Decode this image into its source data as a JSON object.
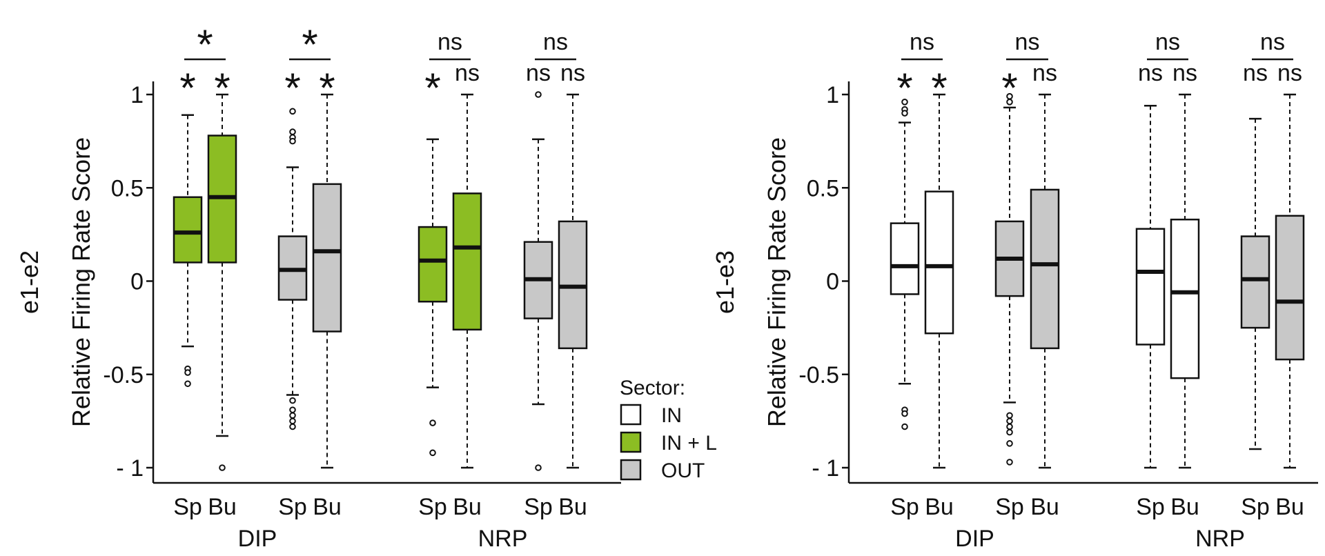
{
  "chart_data": [
    {
      "type": "boxplot",
      "ylabel": "Relative Firing Rate Score",
      "ylabel_prefix": "e1-e2",
      "ylim": [
        -1.08,
        1.08
      ],
      "yticks": [
        1,
        0.5,
        0,
        -0.5,
        -1
      ],
      "ytick_labels": [
        "1",
        "0.5",
        "0",
        "-0.5",
        "- 1"
      ],
      "groups": [
        "DIP",
        "NRP"
      ],
      "boxes": [
        {
          "group": "DIP",
          "category": "Sp",
          "sector": "IN + L",
          "whisker_low": -0.35,
          "q1": 0.1,
          "median": 0.26,
          "q3": 0.45,
          "whisker_high": 0.89,
          "outliers": [
            -0.47,
            -0.49,
            -0.55
          ],
          "significance": "*"
        },
        {
          "group": "DIP",
          "category": "Bu",
          "sector": "IN + L",
          "whisker_low": -0.83,
          "q1": 0.1,
          "median": 0.45,
          "q3": 0.78,
          "whisker_high": 1.0,
          "outliers": [
            -1.0
          ],
          "significance": "*"
        },
        {
          "group": "DIP",
          "category": "Sp",
          "sector": "OUT",
          "whisker_low": -0.61,
          "q1": -0.1,
          "median": 0.06,
          "q3": 0.24,
          "whisker_high": 0.61,
          "outliers": [
            0.91,
            0.8,
            0.77,
            0.75,
            -0.64,
            -0.69,
            -0.72,
            -0.75,
            -0.78
          ],
          "significance": "*"
        },
        {
          "group": "DIP",
          "category": "Bu",
          "sector": "OUT",
          "whisker_low": -1.0,
          "q1": -0.27,
          "median": 0.16,
          "q3": 0.52,
          "whisker_high": 1.0,
          "outliers": [],
          "significance": "*"
        },
        {
          "group": "NRP",
          "category": "Sp",
          "sector": "IN + L",
          "whisker_low": -0.57,
          "q1": -0.11,
          "median": 0.11,
          "q3": 0.29,
          "whisker_high": 0.76,
          "outliers": [
            -0.76,
            -0.92
          ],
          "significance": "*"
        },
        {
          "group": "NRP",
          "category": "Bu",
          "sector": "IN + L",
          "whisker_low": -1.0,
          "q1": -0.26,
          "median": 0.18,
          "q3": 0.47,
          "whisker_high": 1.0,
          "outliers": [],
          "significance": "ns"
        },
        {
          "group": "NRP",
          "category": "Sp",
          "sector": "OUT",
          "whisker_low": -0.66,
          "q1": -0.2,
          "median": 0.01,
          "q3": 0.21,
          "whisker_high": 0.76,
          "outliers": [
            1.0,
            -1.0
          ],
          "significance": "ns"
        },
        {
          "group": "NRP",
          "category": "Bu",
          "sector": "OUT",
          "whisker_low": -1.0,
          "q1": -0.36,
          "median": -0.03,
          "q3": 0.32,
          "whisker_high": 1.0,
          "outliers": [],
          "significance": "ns"
        }
      ],
      "pair_significance": [
        "*",
        "*",
        "ns",
        "ns"
      ]
    },
    {
      "type": "boxplot",
      "ylabel": "Relative Firing Rate Score",
      "ylabel_prefix": "e1-e3",
      "ylim": [
        -1.08,
        1.08
      ],
      "yticks": [
        1,
        0.5,
        0,
        -0.5,
        -1
      ],
      "ytick_labels": [
        "1",
        "0.5",
        "0",
        "-0.5",
        "- 1"
      ],
      "groups": [
        "DIP",
        "NRP"
      ],
      "boxes": [
        {
          "group": "DIP",
          "category": "Sp",
          "sector": "IN",
          "whisker_low": -0.55,
          "q1": -0.07,
          "median": 0.08,
          "q3": 0.31,
          "whisker_high": 0.85,
          "outliers": [
            0.96,
            0.92,
            0.9,
            -0.69,
            -0.71,
            -0.78
          ],
          "significance": "*"
        },
        {
          "group": "DIP",
          "category": "Bu",
          "sector": "IN",
          "whisker_low": -1.0,
          "q1": -0.28,
          "median": 0.08,
          "q3": 0.48,
          "whisker_high": 1.0,
          "outliers": [],
          "significance": "*"
        },
        {
          "group": "DIP",
          "category": "Sp",
          "sector": "OUT",
          "whisker_low": -0.65,
          "q1": -0.08,
          "median": 0.12,
          "q3": 0.32,
          "whisker_high": 0.93,
          "outliers": [
            0.99,
            0.96,
            -0.72,
            -0.75,
            -0.78,
            -0.81,
            -0.87,
            -0.97
          ],
          "significance": "*"
        },
        {
          "group": "DIP",
          "category": "Bu",
          "sector": "OUT",
          "whisker_low": -1.0,
          "q1": -0.36,
          "median": 0.09,
          "q3": 0.49,
          "whisker_high": 1.0,
          "outliers": [],
          "significance": "ns"
        },
        {
          "group": "NRP",
          "category": "Sp",
          "sector": "IN",
          "whisker_low": -1.0,
          "q1": -0.34,
          "median": 0.05,
          "q3": 0.28,
          "whisker_high": 0.94,
          "outliers": [],
          "significance": "ns"
        },
        {
          "group": "NRP",
          "category": "Bu",
          "sector": "IN",
          "whisker_low": -1.0,
          "q1": -0.52,
          "median": -0.06,
          "q3": 0.33,
          "whisker_high": 1.0,
          "outliers": [],
          "significance": "ns"
        },
        {
          "group": "NRP",
          "category": "Sp",
          "sector": "OUT",
          "whisker_low": -0.9,
          "q1": -0.25,
          "median": 0.01,
          "q3": 0.24,
          "whisker_high": 0.87,
          "outliers": [],
          "significance": "ns"
        },
        {
          "group": "NRP",
          "category": "Bu",
          "sector": "OUT",
          "whisker_low": -1.0,
          "q1": -0.42,
          "median": -0.11,
          "q3": 0.35,
          "whisker_high": 1.0,
          "outliers": [],
          "significance": "ns"
        }
      ],
      "pair_significance": [
        "ns",
        "ns",
        "ns",
        "ns"
      ]
    }
  ],
  "legend": {
    "title": "Sector:",
    "placement": "between panels, bottom",
    "items": [
      {
        "label": "IN",
        "color": "#ffffff"
      },
      {
        "label": "IN + L",
        "color": "#8cbd23"
      },
      {
        "label": "OUT",
        "color": "#c8c8c8"
      }
    ]
  },
  "colors": {
    "IN": "#ffffff",
    "IN + L": "#8cbd23",
    "OUT": "#c8c8c8",
    "ink": "#111111"
  }
}
